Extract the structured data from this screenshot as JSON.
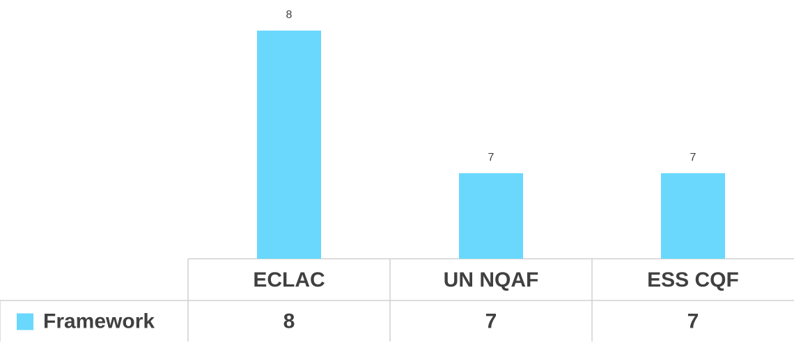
{
  "chart_data": {
    "type": "bar",
    "categories": [
      "ECLAC",
      "UN NQAF",
      "ESS CQF"
    ],
    "series": [
      {
        "name": "Framework",
        "color": "#6ad8fd",
        "values": [
          8,
          7,
          7
        ]
      }
    ],
    "ylim": [
      6.4,
      8.1
    ],
    "data_table": true,
    "legend": "table"
  }
}
